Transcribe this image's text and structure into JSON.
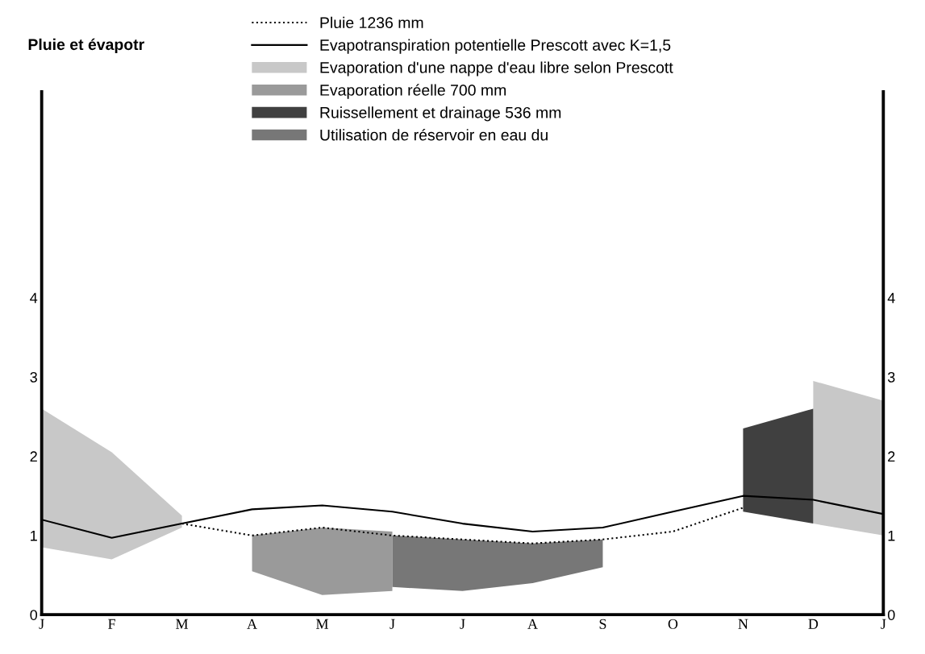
{
  "chart_data": {
    "type": "line",
    "ylabel": "Pluie et évapotr",
    "categories": [
      "J",
      "F",
      "M",
      "A",
      "M",
      "J",
      "J",
      "A",
      "S",
      "O",
      "N",
      "D",
      "J"
    ],
    "series": [
      {
        "name": "Pluie 1236 mm",
        "line_style": "dotted",
        "color": "#000000",
        "values": [
          null,
          null,
          1.15,
          1.0,
          1.1,
          1.0,
          0.95,
          0.9,
          0.95,
          1.05,
          1.35,
          null,
          null
        ]
      },
      {
        "name": "Evapotranspiration potentielle Prescott avec K=1,5",
        "line_style": "solid",
        "color": "#000000",
        "values": [
          1.2,
          0.97,
          1.15,
          1.33,
          1.38,
          1.3,
          1.15,
          1.05,
          1.1,
          1.3,
          1.5,
          1.45,
          1.27
        ]
      },
      {
        "name": "Evaporation d'une nappe d'eau libre selon Prescott",
        "type": "area",
        "color": "#c8c8c8",
        "values": [
          null,
          null,
          null,
          null,
          null,
          null,
          null,
          null,
          null,
          null,
          null,
          null,
          null
        ],
        "lower": [
          0.85,
          0.7,
          1.1,
          null,
          null,
          null,
          null,
          null,
          null,
          null,
          null,
          1.15,
          1.0
        ],
        "upper": [
          2.6,
          2.05,
          1.25,
          null,
          null,
          null,
          null,
          null,
          null,
          null,
          null,
          2.95,
          2.7
        ]
      },
      {
        "name": "Evaporation réelle 700 mm",
        "type": "area",
        "color": "#9a9a9a",
        "values": [
          null,
          null,
          null,
          null,
          null,
          null,
          null,
          null,
          null,
          null,
          null,
          null,
          null
        ],
        "lower": [
          null,
          null,
          null,
          0.55,
          0.25,
          0.3,
          null,
          null,
          null,
          null,
          null,
          null,
          null
        ],
        "upper": [
          null,
          null,
          null,
          1.0,
          1.1,
          1.05,
          null,
          null,
          null,
          null,
          null,
          null,
          null
        ]
      },
      {
        "name": "Ruissellement et drainage 536 mm",
        "type": "area",
        "color": "#404040",
        "values": [
          null,
          null,
          null,
          null,
          null,
          null,
          null,
          null,
          null,
          null,
          null,
          null,
          null
        ],
        "lower": [
          null,
          null,
          null,
          null,
          null,
          null,
          null,
          null,
          null,
          null,
          1.3,
          1.15,
          null
        ],
        "upper": [
          null,
          null,
          null,
          null,
          null,
          null,
          null,
          null,
          null,
          null,
          2.35,
          2.6,
          null
        ]
      },
      {
        "name": "Utilisation de réservoir en eau du",
        "type": "area",
        "color": "#777777",
        "values": [
          null,
          null,
          null,
          null,
          null,
          null,
          null,
          null,
          null,
          null,
          null,
          null,
          null
        ],
        "lower": [
          null,
          null,
          null,
          null,
          null,
          0.35,
          0.3,
          0.4,
          0.6,
          null,
          null,
          null,
          null
        ],
        "upper": [
          null,
          null,
          null,
          null,
          null,
          1.0,
          0.95,
          0.9,
          0.95,
          null,
          null,
          null,
          null
        ]
      }
    ],
    "ylim": [
      0,
      6.6
    ],
    "yticks": [
      0,
      1,
      2,
      3,
      4
    ],
    "y2lim": [
      0,
      6.6
    ],
    "y2ticks": [
      0,
      1,
      2,
      3,
      4
    ],
    "legend": "top",
    "grid": false
  }
}
